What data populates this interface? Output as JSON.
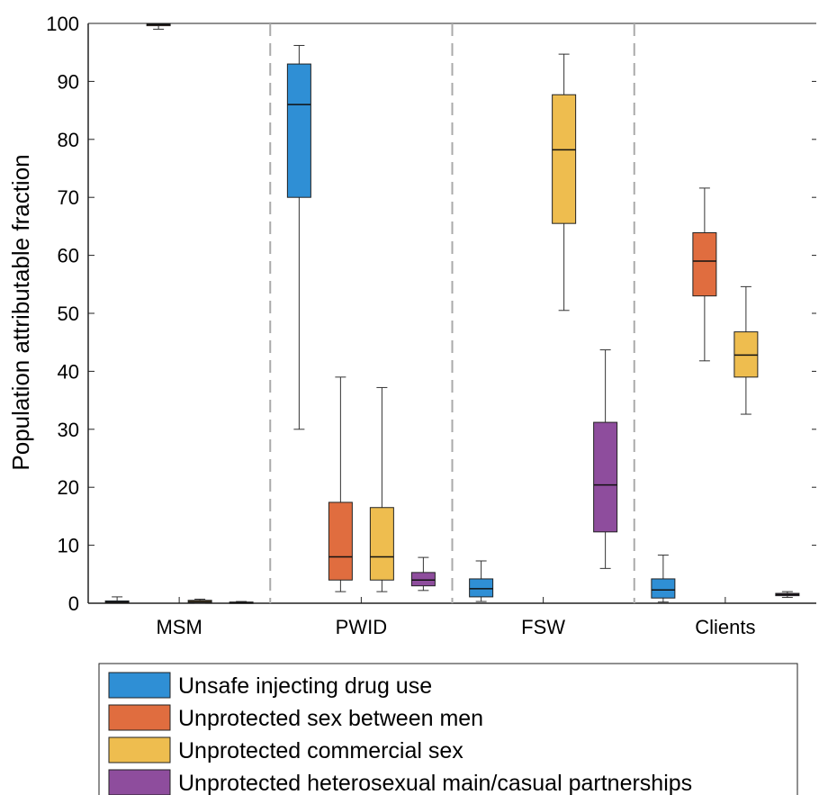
{
  "chart_data": {
    "type": "boxplot",
    "ylabel": "Population attributable fraction",
    "xlabel": "",
    "ylim": [
      0,
      100
    ],
    "yticks": [
      0,
      10,
      20,
      30,
      40,
      50,
      60,
      70,
      80,
      90,
      100
    ],
    "categories": [
      "MSM",
      "PWID",
      "FSW",
      "Clients"
    ],
    "grid": false,
    "group_separators": "dashed",
    "legend_position": "bottom",
    "series": [
      {
        "name": "Unsafe injecting drug use",
        "color": "#2f8fd5",
        "boxes": [
          {
            "min": 0.0,
            "q1": 0.0,
            "median": 0.2,
            "q3": 0.4,
            "max": 1.1
          },
          {
            "min": 30.0,
            "q1": 70.0,
            "median": 86.0,
            "q3": 93.0,
            "max": 96.2
          },
          {
            "min": 0.3,
            "q1": 1.1,
            "median": 2.5,
            "q3": 4.2,
            "max": 7.3
          },
          {
            "min": 0.2,
            "q1": 0.9,
            "median": 2.3,
            "q3": 4.2,
            "max": 8.3
          }
        ]
      },
      {
        "name": "Unprotected sex between men",
        "color": "#e06d3f",
        "boxes": [
          {
            "min": 99.0,
            "q1": 99.6,
            "median": 99.8,
            "q3": 100.0,
            "max": 100.0
          },
          {
            "min": 2.0,
            "q1": 4.0,
            "median": 8.0,
            "q3": 17.4,
            "max": 39.0
          },
          null,
          {
            "min": 41.8,
            "q1": 53.0,
            "median": 59.0,
            "q3": 63.9,
            "max": 71.6
          }
        ]
      },
      {
        "name": "Unprotected commercial sex",
        "color": "#eebd4f",
        "boxes": [
          {
            "min": 0.0,
            "q1": 0.1,
            "median": 0.3,
            "q3": 0.5,
            "max": 0.7
          },
          {
            "min": 2.0,
            "q1": 4.0,
            "median": 8.0,
            "q3": 16.5,
            "max": 37.2
          },
          {
            "min": 50.5,
            "q1": 65.5,
            "median": 78.2,
            "q3": 87.7,
            "max": 94.7
          },
          {
            "min": 32.6,
            "q1": 39.0,
            "median": 42.8,
            "q3": 46.8,
            "max": 54.6
          }
        ]
      },
      {
        "name": "Unprotected heterosexual main/casual partnerships",
        "color": "#8e4d9d",
        "boxes": [
          {
            "min": 0.0,
            "q1": 0.0,
            "median": 0.1,
            "q3": 0.2,
            "max": 0.3
          },
          {
            "min": 2.2,
            "q1": 3.0,
            "median": 4.0,
            "q3": 5.3,
            "max": 7.9
          },
          {
            "min": 6.0,
            "q1": 12.3,
            "median": 20.4,
            "q3": 31.2,
            "max": 43.7
          },
          {
            "min": 1.0,
            "q1": 1.3,
            "median": 1.5,
            "q3": 1.7,
            "max": 2.0
          }
        ]
      }
    ]
  }
}
